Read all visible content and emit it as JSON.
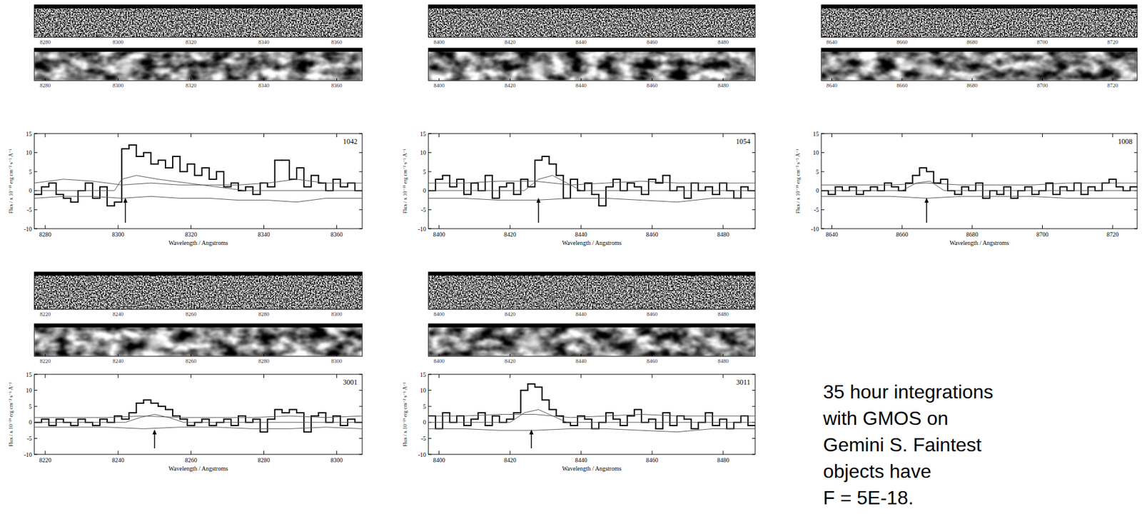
{
  "chart_data": [
    {
      "type": "step",
      "title": "1042",
      "xlabel": "Wavelength / Angstroms",
      "ylabel": "Flux / x 10⁻¹⁹ erg cm⁻² s⁻¹ Å⁻¹",
      "xlim": [
        8277,
        8367
      ],
      "xticks": [
        8280,
        8300,
        8320,
        8340,
        8360
      ],
      "ylim": [
        -10,
        15
      ],
      "yticks": [
        -10,
        -5,
        0,
        5,
        10,
        15
      ],
      "arrow_x": 8302,
      "series": [
        {
          "type": "step",
          "color": "#000000",
          "line_style": "solid",
          "bins": [
            8277,
            8279,
            8281,
            8283,
            8285,
            8287,
            8289,
            8291,
            8293,
            8295,
            8297,
            8299,
            8301,
            8303,
            8305,
            8307,
            8309,
            8311,
            8313,
            8315,
            8317,
            8319,
            8321,
            8323,
            8325,
            8327,
            8329,
            8331,
            8333,
            8335,
            8337,
            8339,
            8341,
            8343,
            8345,
            8347,
            8349,
            8351,
            8353,
            8355,
            8357,
            8359,
            8361,
            8363,
            8365,
            8367
          ],
          "values": [
            -1,
            1,
            2,
            -1,
            -2,
            -3,
            0,
            2,
            -2,
            1,
            -4,
            -3,
            11,
            12,
            9,
            10,
            7,
            8,
            6,
            9,
            5,
            7,
            4,
            6,
            3,
            5,
            1,
            2,
            0,
            1,
            -1,
            2,
            1,
            8,
            8,
            3,
            6,
            1,
            4,
            2,
            0,
            3,
            1,
            2,
            0
          ]
        },
        {
          "type": "line",
          "color": "#555555",
          "line_style": "solid",
          "x": [
            8277,
            8285,
            8293,
            8301,
            8309,
            8317,
            8325,
            8333,
            8341,
            8349,
            8357,
            8367
          ],
          "values": [
            2,
            3,
            2.5,
            1.5,
            2,
            1.5,
            1.5,
            1.5,
            2,
            3,
            2,
            2
          ]
        },
        {
          "type": "line",
          "color": "#555555",
          "line_style": "solid",
          "x": [
            8277,
            8285,
            8293,
            8301,
            8309,
            8317,
            8325,
            8333,
            8341,
            8349,
            8357,
            8367
          ],
          "values": [
            -2,
            -1.5,
            -1.5,
            -2,
            -1.5,
            -2,
            -2,
            -2.5,
            -2.5,
            -3,
            -2,
            -2
          ]
        },
        {
          "type": "line",
          "color": "#555555",
          "line_style": "solid",
          "x": [
            8277,
            8299,
            8301,
            8305,
            8311,
            8319,
            8327,
            8335,
            8367
          ],
          "values": [
            0,
            0,
            3,
            4,
            3,
            2,
            1,
            0,
            0
          ]
        }
      ]
    },
    {
      "type": "step",
      "title": "1054",
      "xlabel": "Wavelength / Angstroms",
      "ylabel": "Flux / x 10⁻¹⁹ erg cm⁻² s⁻¹ Å⁻¹",
      "xlim": [
        8397,
        8489
      ],
      "xticks": [
        8400,
        8420,
        8440,
        8460,
        8480
      ],
      "ylim": [
        -10,
        15
      ],
      "yticks": [
        -10,
        -5,
        0,
        5,
        10,
        15
      ],
      "arrow_x": 8428,
      "series": [
        {
          "type": "step",
          "color": "#000000",
          "line_style": "solid",
          "bins": [
            8397,
            8399,
            8401,
            8403,
            8405,
            8407,
            8409,
            8411,
            8413,
            8415,
            8417,
            8419,
            8421,
            8423,
            8425,
            8427,
            8429,
            8431,
            8433,
            8435,
            8437,
            8439,
            8441,
            8443,
            8445,
            8447,
            8449,
            8451,
            8453,
            8455,
            8457,
            8459,
            8461,
            8463,
            8465,
            8467,
            8469,
            8471,
            8473,
            8475,
            8477,
            8479,
            8481,
            8483,
            8485,
            8487,
            8489
          ],
          "values": [
            0,
            3,
            4,
            1,
            3,
            -1,
            2,
            0,
            4,
            -2,
            1,
            2,
            -1,
            3,
            1,
            8,
            9,
            7,
            4,
            -2,
            3,
            0,
            2,
            -1,
            -4,
            1,
            3,
            0,
            2,
            1,
            -1,
            3,
            2,
            4,
            0,
            1,
            -2,
            2,
            0,
            1,
            -1,
            2,
            0,
            -2,
            1,
            0
          ]
        },
        {
          "type": "line",
          "color": "#555555",
          "line_style": "solid",
          "x": [
            8397,
            8407,
            8417,
            8427,
            8437,
            8447,
            8457,
            8467,
            8477,
            8489
          ],
          "values": [
            2,
            2,
            2.5,
            2.5,
            1.5,
            2,
            2.5,
            2,
            2,
            2
          ]
        },
        {
          "type": "line",
          "color": "#555555",
          "line_style": "solid",
          "x": [
            8397,
            8407,
            8417,
            8427,
            8437,
            8447,
            8457,
            8467,
            8477,
            8489
          ],
          "values": [
            -2,
            -2,
            -2.5,
            -2.5,
            -2,
            -2,
            -2.5,
            -3,
            -2,
            -2
          ]
        },
        {
          "type": "line",
          "color": "#555555",
          "line_style": "solid",
          "x": [
            8397,
            8424,
            8428,
            8432,
            8436,
            8440,
            8489
          ],
          "values": [
            0,
            0,
            3,
            4,
            2,
            0,
            0
          ]
        }
      ]
    },
    {
      "type": "step",
      "title": "1008",
      "xlabel": "Wavelength / Angstroms",
      "ylabel": "Flux / x 10⁻¹⁹ erg cm⁻² s⁻¹ Å⁻¹",
      "xlim": [
        8637,
        8727
      ],
      "xticks": [
        8640,
        8660,
        8680,
        8700,
        8720
      ],
      "ylim": [
        -10,
        15
      ],
      "yticks": [
        -10,
        -5,
        0,
        5,
        10,
        15
      ],
      "arrow_x": 8667,
      "series": [
        {
          "type": "step",
          "color": "#000000",
          "line_style": "solid",
          "bins": [
            8637,
            8639,
            8641,
            8643,
            8645,
            8647,
            8649,
            8651,
            8653,
            8655,
            8657,
            8659,
            8661,
            8663,
            8665,
            8667,
            8669,
            8671,
            8673,
            8675,
            8677,
            8679,
            8681,
            8683,
            8685,
            8687,
            8689,
            8691,
            8693,
            8695,
            8697,
            8699,
            8701,
            8703,
            8705,
            8707,
            8709,
            8711,
            8713,
            8715,
            8717,
            8719,
            8721,
            8723,
            8725,
            8727
          ],
          "values": [
            0,
            -1,
            1,
            0,
            1,
            -1,
            0,
            1,
            0,
            2,
            1,
            0,
            2,
            4,
            6,
            5,
            2,
            3,
            0,
            -1,
            1,
            0,
            2,
            -2,
            0,
            -1,
            1,
            -2,
            0,
            1,
            -1,
            0,
            2,
            -1,
            1,
            0,
            2,
            -1,
            1,
            0,
            2,
            3,
            1,
            0,
            1
          ]
        },
        {
          "type": "line",
          "color": "#555555",
          "line_style": "solid",
          "x": [
            8637,
            8647,
            8657,
            8667,
            8677,
            8687,
            8697,
            8707,
            8717,
            8727
          ],
          "values": [
            1.5,
            1.5,
            1.5,
            2,
            1.5,
            1.5,
            1.5,
            2,
            2,
            2
          ]
        },
        {
          "type": "line",
          "color": "#555555",
          "line_style": "solid",
          "x": [
            8637,
            8647,
            8657,
            8667,
            8677,
            8687,
            8697,
            8707,
            8717,
            8727
          ],
          "values": [
            -1.5,
            -1.5,
            -1.5,
            -2,
            -1.5,
            -1.5,
            -1.5,
            -2,
            -2,
            -2
          ]
        },
        {
          "type": "line",
          "color": "#555555",
          "line_style": "solid",
          "x": [
            8637,
            8660,
            8664,
            8668,
            8672,
            8727
          ],
          "values": [
            0,
            0,
            2,
            2.5,
            0,
            0
          ]
        }
      ]
    },
    {
      "type": "step",
      "title": "3001",
      "xlabel": "Wavelength / Angstroms",
      "ylabel": "Flux / x 10⁻¹⁹ erg cm⁻² s⁻¹ Å⁻¹",
      "xlim": [
        8217,
        8307
      ],
      "xticks": [
        8220,
        8240,
        8260,
        8280,
        8300
      ],
      "ylim": [
        -10,
        15
      ],
      "yticks": [
        -10,
        -5,
        0,
        5,
        10,
        15
      ],
      "arrow_x": 8250,
      "series": [
        {
          "type": "step",
          "color": "#000000",
          "line_style": "solid",
          "bins": [
            8217,
            8219,
            8221,
            8223,
            8225,
            8227,
            8229,
            8231,
            8233,
            8235,
            8237,
            8239,
            8241,
            8243,
            8245,
            8247,
            8249,
            8251,
            8253,
            8255,
            8257,
            8259,
            8261,
            8263,
            8265,
            8267,
            8269,
            8271,
            8273,
            8275,
            8277,
            8279,
            8281,
            8283,
            8285,
            8287,
            8289,
            8291,
            8293,
            8295,
            8297,
            8299,
            8301,
            8303,
            8305,
            8307
          ],
          "values": [
            0,
            1,
            -1,
            1,
            0,
            -1,
            1,
            0,
            -1,
            1,
            0,
            2,
            1,
            3,
            6,
            7,
            6,
            5,
            4,
            2,
            1,
            -1,
            0,
            1,
            -1,
            0,
            1,
            -1,
            2,
            0,
            1,
            -3,
            1,
            4,
            3,
            4,
            3,
            -3,
            2,
            3,
            0,
            2,
            -1,
            1,
            0
          ]
        },
        {
          "type": "line",
          "color": "#555555",
          "line_style": "solid",
          "x": [
            8217,
            8227,
            8237,
            8247,
            8257,
            8267,
            8277,
            8287,
            8297,
            8307
          ],
          "values": [
            1.5,
            1.5,
            1.5,
            2,
            1.5,
            1.5,
            1.5,
            2,
            1.5,
            2
          ]
        },
        {
          "type": "line",
          "color": "#555555",
          "line_style": "solid",
          "x": [
            8217,
            8227,
            8237,
            8247,
            8257,
            8267,
            8277,
            8287,
            8297,
            8307
          ],
          "values": [
            -1.5,
            -1.5,
            -1.5,
            -2,
            -1.5,
            -1.5,
            -2,
            -2,
            -1.5,
            -2
          ]
        },
        {
          "type": "line",
          "color": "#555555",
          "line_style": "solid",
          "x": [
            8217,
            8242,
            8246,
            8250,
            8254,
            8258,
            8307
          ],
          "values": [
            0,
            0,
            1.5,
            2.5,
            1.5,
            0,
            0
          ]
        }
      ]
    },
    {
      "type": "step",
      "title": "3011",
      "xlabel": "Wavelength / Angstroms",
      "ylabel": "Flux / x 10⁻¹⁹ erg cm⁻² s⁻¹ Å⁻¹",
      "xlim": [
        8397,
        8489
      ],
      "xticks": [
        8400,
        8420,
        8440,
        8460,
        8480
      ],
      "ylim": [
        -10,
        15
      ],
      "yticks": [
        -10,
        -5,
        0,
        5,
        10,
        15
      ],
      "arrow_x": 8426,
      "series": [
        {
          "type": "step",
          "color": "#000000",
          "line_style": "solid",
          "bins": [
            8397,
            8399,
            8401,
            8403,
            8405,
            8407,
            8409,
            8411,
            8413,
            8415,
            8417,
            8419,
            8421,
            8423,
            8425,
            8427,
            8429,
            8431,
            8433,
            8435,
            8437,
            8439,
            8441,
            8443,
            8445,
            8447,
            8449,
            8451,
            8453,
            8455,
            8457,
            8459,
            8461,
            8463,
            8465,
            8467,
            8469,
            8471,
            8473,
            8475,
            8477,
            8479,
            8481,
            8483,
            8485,
            8487,
            8489
          ],
          "values": [
            2,
            -2,
            3,
            0,
            2,
            -1,
            1,
            3,
            -1,
            2,
            0,
            1,
            3,
            10,
            12,
            11,
            7,
            4,
            2,
            0,
            -1,
            2,
            1,
            -2,
            0,
            3,
            1,
            -1,
            2,
            4,
            0,
            1,
            -2,
            3,
            -1,
            2,
            1,
            -2,
            0,
            3,
            -1,
            1,
            -2,
            0,
            2,
            -1
          ]
        },
        {
          "type": "line",
          "color": "#555555",
          "line_style": "solid",
          "x": [
            8397,
            8407,
            8417,
            8427,
            8437,
            8447,
            8457,
            8467,
            8477,
            8489
          ],
          "values": [
            2,
            2,
            2.5,
            2.5,
            1.5,
            2,
            2.5,
            2,
            2,
            2
          ]
        },
        {
          "type": "line",
          "color": "#555555",
          "line_style": "solid",
          "x": [
            8397,
            8407,
            8417,
            8427,
            8437,
            8447,
            8457,
            8467,
            8477,
            8489
          ],
          "values": [
            -2,
            -2,
            -2.5,
            -2.5,
            -2,
            -2,
            -2.5,
            -3,
            -2,
            -2
          ]
        },
        {
          "type": "line",
          "color": "#555555",
          "line_style": "solid",
          "x": [
            8397,
            8420,
            8424,
            8428,
            8432,
            8436,
            8489
          ],
          "values": [
            0,
            0,
            3,
            4,
            2,
            0,
            0
          ]
        }
      ]
    }
  ],
  "caption": [
    "35 hour integrations",
    "with GMOS on",
    "Gemini S. Faintest",
    "objects have",
    "F = 5E-18."
  ]
}
